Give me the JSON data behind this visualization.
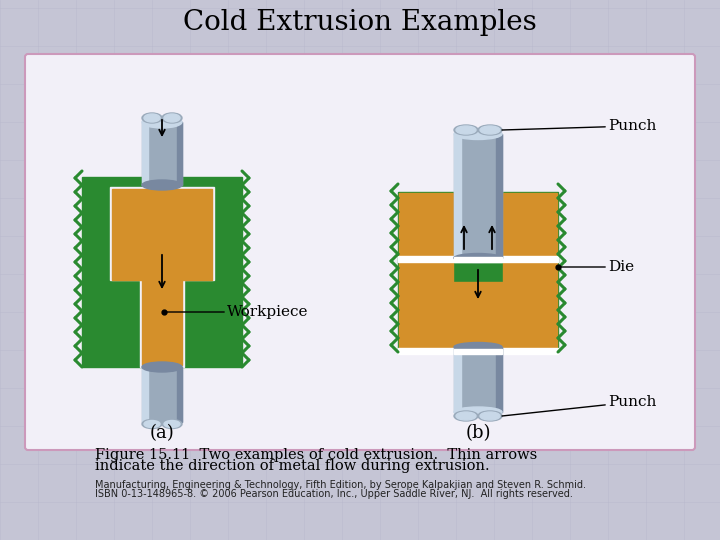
{
  "title": "Cold Extrusion Examples",
  "caption_line1": "Figure 15.11  Two examples of cold extrusion.  Thin arrows",
  "caption_line2": "indicate the direction of metal flow during extrusion.",
  "footnote_line1": "Manufacturing, Engineering & Technology, Fifth Edition, by Serope Kalpakjian and Steven R. Schmid.",
  "footnote_line2": "ISBN 0-13-148965-8. © 2006 Pearson Education, Inc., Upper Saddle River, NJ.  All rights reserved.",
  "bg_color": "#c5c5d5",
  "panel_bg_color": "#f2f0f8",
  "panel_border_color": "#cc99bb",
  "green_color": "#2a8a30",
  "orange_color": "#d4902a",
  "silver_hi": "#c8d8e8",
  "silver_mid": "#9aaabb",
  "silver_lo": "#7888a0",
  "white_color": "#ffffff",
  "label_a": "(a)",
  "label_b": "(b)",
  "label_workpiece": "Workpiece",
  "label_punch_top": "Punch",
  "label_die": "Die",
  "label_punch_bot": "Punch",
  "title_fontsize": 20,
  "caption_fontsize": 10.5,
  "footnote_fontsize": 7,
  "label_fontsize": 11,
  "grid_color": "#b0b0c8",
  "grid_alpha": 0.45,
  "grid_lw": 0.4
}
